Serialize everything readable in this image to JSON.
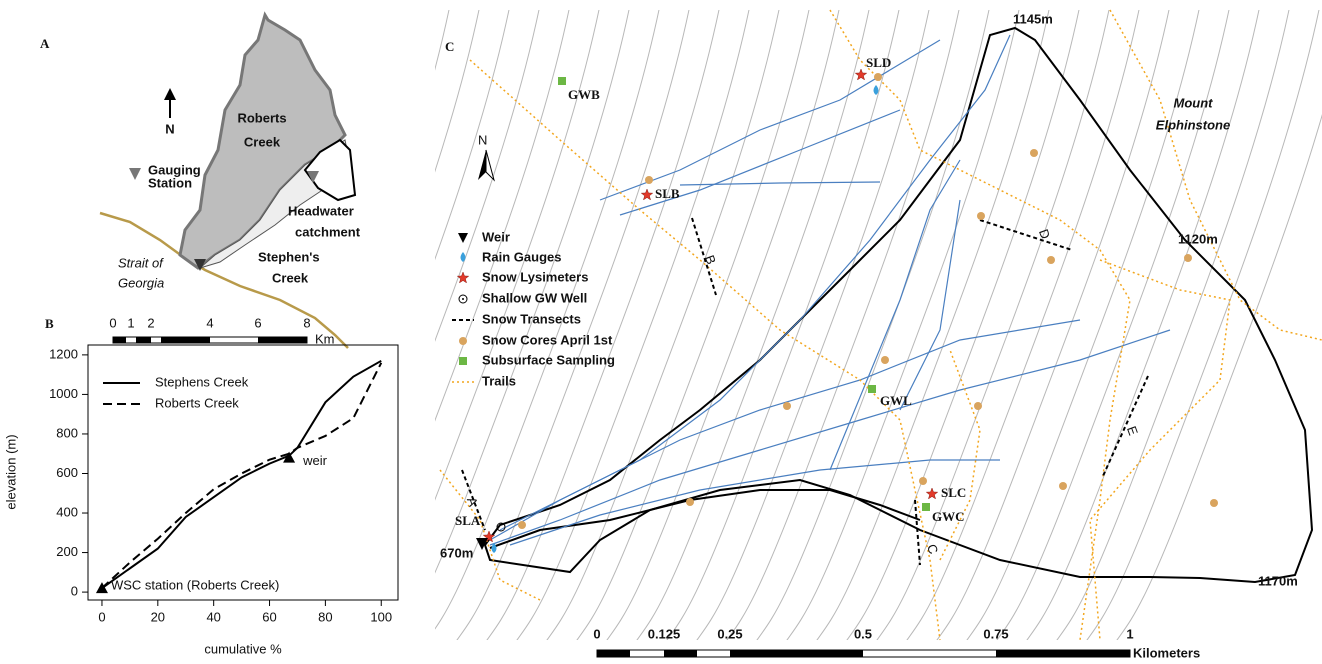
{
  "panel_a": {
    "label": "A",
    "north": "N",
    "gauging_station": [
      "Gauging",
      "Station"
    ],
    "roberts_creek": [
      "Roberts",
      "Creek"
    ],
    "headwater_catchment": [
      "Headwater",
      "catchment"
    ],
    "stephens_creek": [
      "Stephen's",
      "Creek"
    ],
    "strait": [
      "Strait of",
      "Georgia"
    ],
    "scale_ticks": [
      0,
      1,
      2,
      4,
      6,
      8
    ],
    "scale_unit": "Km"
  },
  "chart_data": {
    "type": "line",
    "panel_label": "B",
    "x_label": "cumulative %",
    "y_label": "elevation (m)",
    "x": [
      0,
      10,
      20,
      30,
      40,
      50,
      60,
      67,
      70,
      80,
      90,
      100
    ],
    "series": [
      {
        "name": "Stephens Creek",
        "color": "#000000",
        "dash": "none",
        "values": [
          20,
          120,
          220,
          380,
          480,
          580,
          650,
          690,
          730,
          960,
          1090,
          1170
        ]
      },
      {
        "name": "Roberts Creek",
        "color": "#000000",
        "dash": "9 5",
        "values": [
          20,
          150,
          270,
          400,
          520,
          600,
          670,
          700,
          730,
          790,
          880,
          1160
        ]
      }
    ],
    "markers": [
      {
        "label": "weir",
        "x": 67,
        "y": 680
      },
      {
        "label": "WSC station (Roberts Creek)",
        "x": 0,
        "y": 20
      }
    ],
    "xlim": [
      -5,
      106
    ],
    "ylim": [
      -40,
      1250
    ],
    "xticks": [
      0,
      20,
      40,
      60,
      80,
      100
    ],
    "yticks": [
      0,
      200,
      400,
      600,
      800,
      1000,
      1200
    ]
  },
  "panel_c": {
    "label": "C",
    "north": "N",
    "mountain": [
      "Mount",
      "Elphinstone"
    ],
    "elevations": [
      "1145m",
      "1120m",
      "1170m",
      "670m"
    ],
    "sites": [
      "SLA",
      "SLB",
      "SLC",
      "SLD",
      "GWB",
      "GWL",
      "GWC"
    ],
    "transects": [
      "A",
      "B",
      "C",
      "D",
      "E"
    ],
    "legend": [
      "Weir",
      "Rain Gauges",
      "Snow Lysimeters",
      "Shallow GW Well",
      "Snow Transects",
      "Snow Cores April 1st",
      "Subsurface Sampling",
      "Trails"
    ],
    "scale_ticks": [
      0,
      0.125,
      0.25,
      0.5,
      0.75,
      1
    ],
    "scale_unit": "Kilometers"
  }
}
